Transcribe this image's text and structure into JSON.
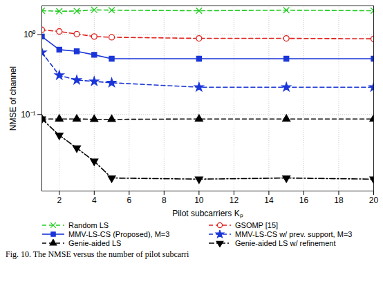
{
  "chart_data": {
    "type": "line",
    "caption": "Fig. 10. The NMSE versus the number of pilot subcarri",
    "x_label": "Pilot subcarriers Kₚ",
    "y_label": "NMSE of channel",
    "log": "y",
    "grid": true,
    "legend": "bottom",
    "xlim": [
      1,
      20
    ],
    "xticks": [
      2,
      4,
      6,
      8,
      10,
      12,
      14,
      16,
      18,
      20
    ],
    "ylim": [
      0.011,
      2.3
    ],
    "yticks": [
      {
        "value": 0.1,
        "label": "10⁻¹"
      },
      {
        "value": 1,
        "label": "10⁰"
      }
    ],
    "x": [
      1,
      2,
      3,
      4,
      5,
      10,
      15,
      20
    ],
    "series": [
      {
        "name": "Random LS",
        "color": "#22cc22",
        "marker": "x",
        "line_style": "dashed",
        "values": [
          2.0,
          1.97,
          1.98,
          2.05,
          2.03,
          2.0,
          2.03,
          2.0
        ]
      },
      {
        "name": "GSOMP [15]",
        "color": "#e0201b",
        "marker": "o",
        "line_style": "dashed",
        "values": [
          1.15,
          1.1,
          1.02,
          0.95,
          0.93,
          0.9,
          0.9,
          0.89
        ]
      },
      {
        "name": "MMV-LS-CS (Proposed), M=3",
        "color": "#1a35d8",
        "marker": "square",
        "line_style": "solid",
        "values": [
          0.95,
          0.65,
          0.62,
          0.56,
          0.5,
          0.5,
          0.5,
          0.5
        ]
      },
      {
        "name": "MMV-LS-CS w/ prev. support, M=3",
        "color": "#1a35d8",
        "marker": "star",
        "line_style": "dashed",
        "values": [
          0.6,
          0.31,
          0.27,
          0.26,
          0.25,
          0.22,
          0.22,
          0.22
        ]
      },
      {
        "name": "Genie-aided LS",
        "color": "#000000",
        "marker": "triangle",
        "line_style": "dashed",
        "values": [
          0.088,
          0.088,
          0.088,
          0.087,
          0.087,
          0.088,
          0.088,
          0.088
        ]
      },
      {
        "name": "Genie-aided LS w/ refinement",
        "color": "#000000",
        "marker": "triangle-down",
        "line_style": "dashdot",
        "values": [
          0.088,
          0.055,
          0.038,
          0.026,
          0.016,
          0.0155,
          0.016,
          0.0155
        ]
      }
    ]
  }
}
